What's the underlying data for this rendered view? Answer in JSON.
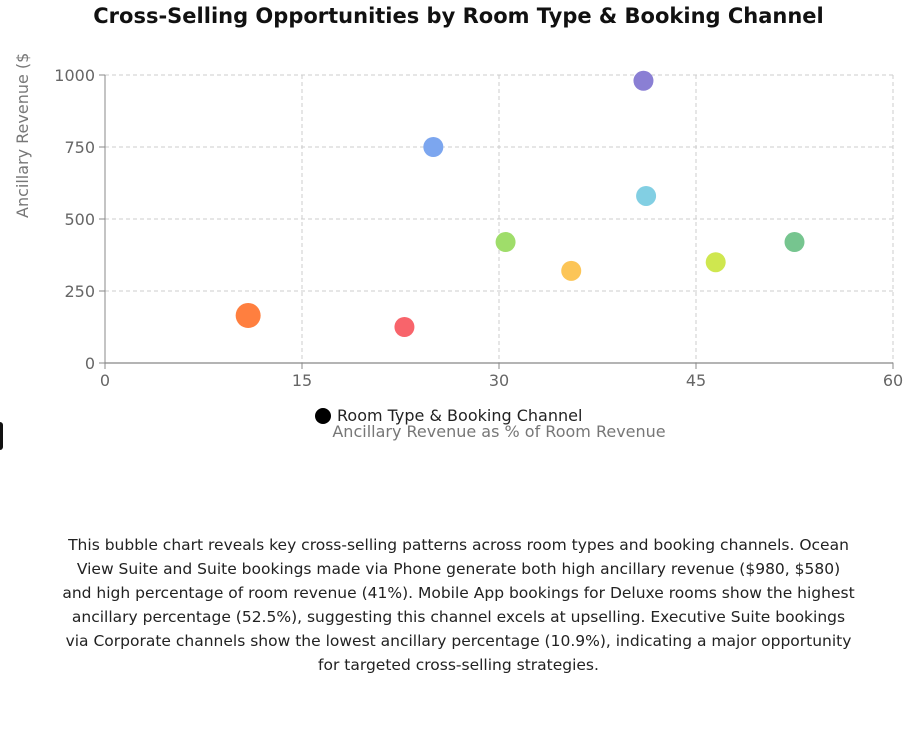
{
  "chart_data": {
    "type": "scatter",
    "title": "Cross-Selling Opportunities by Room Type & Booking Channel",
    "xlabel": "Ancillary Revenue as % of Room Revenue",
    "ylabel": "Ancillary Revenue ($",
    "xlim": [
      0,
      60
    ],
    "ylim": [
      0,
      1000
    ],
    "x_ticks": [
      0,
      15,
      30,
      45,
      60
    ],
    "y_ticks": [
      0,
      250,
      500,
      750,
      1000
    ],
    "grid": true,
    "legend": {
      "placement": "bottom-center",
      "label": "Room Type & Booking Channel"
    },
    "series": [
      {
        "name": "Room Type & Booking Channel",
        "points": [
          {
            "x": 10.9,
            "y": 165,
            "color": "#ff7f3f",
            "size": "large"
          },
          {
            "x": 22.8,
            "y": 125,
            "color": "#f8646b",
            "size": "medium"
          },
          {
            "x": 25.0,
            "y": 750,
            "color": "#7ca6ef",
            "size": "medium"
          },
          {
            "x": 30.5,
            "y": 420,
            "color": "#9fdd6a",
            "size": "medium"
          },
          {
            "x": 35.5,
            "y": 320,
            "color": "#fcc557",
            "size": "medium"
          },
          {
            "x": 41.0,
            "y": 980,
            "color": "#8a7fd4",
            "size": "medium"
          },
          {
            "x": 41.2,
            "y": 580,
            "color": "#82cfe3",
            "size": "medium"
          },
          {
            "x": 46.5,
            "y": 350,
            "color": "#cfe74f",
            "size": "medium"
          },
          {
            "x": 52.5,
            "y": 420,
            "color": "#76c58f",
            "size": "medium"
          }
        ]
      }
    ]
  },
  "caption": "This bubble chart reveals key cross-selling patterns across room types and booking channels. Ocean View Suite and Suite bookings made via Phone generate both high ancillary revenue ($980, $580) and high percentage of room revenue (41%). Mobile App bookings for Deluxe rooms show the highest ancillary percentage (52.5%), suggesting this channel excels at upselling. Executive Suite bookings via Corporate channels show the lowest ancillary percentage (10.9%), indicating a major opportunity for targeted cross-selling strategies.",
  "colors": {
    "grid": "#cccccc",
    "axis": "#888888",
    "tick_text": "#666666",
    "legend_marker": "#000000"
  }
}
